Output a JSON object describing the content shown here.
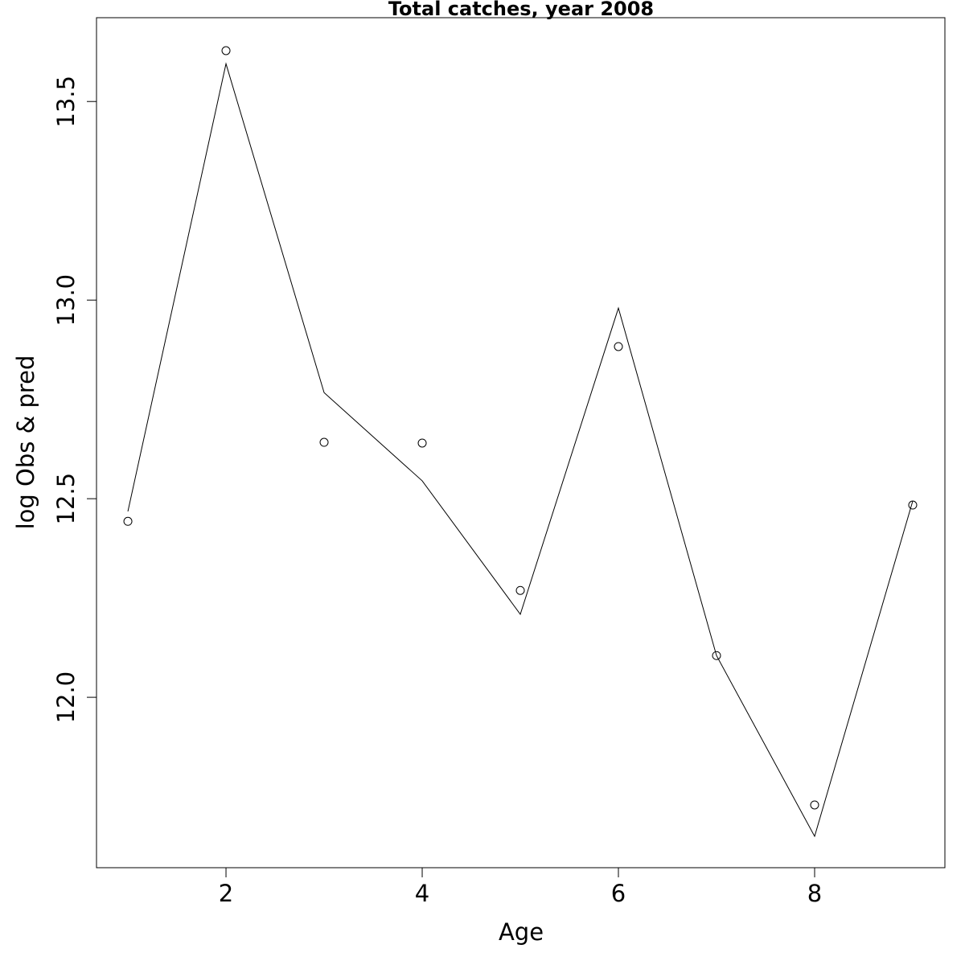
{
  "chart_data": {
    "type": "line",
    "title": "Total catches, year 2008",
    "x_label": "Age",
    "y_label": "log Obs & pred",
    "x": [
      1,
      2,
      3,
      4,
      5,
      6,
      7,
      8,
      9
    ],
    "series": [
      {
        "color": "#000000",
        "mark": "points",
        "values": [
          12.443,
          13.628,
          12.642,
          12.64,
          12.269,
          12.883,
          12.105,
          11.729,
          12.484
        ]
      },
      {
        "color": "#000000",
        "mark": "line",
        "values": [
          12.468,
          13.595,
          12.767,
          12.545,
          12.209,
          12.98,
          12.105,
          11.65,
          12.494
        ]
      }
    ],
    "xlim": [
      0.68,
      9.328
    ],
    "ylim": [
      11.571,
      13.711
    ],
    "xticks": [
      2,
      4,
      6,
      8
    ],
    "yticks": [
      {
        "value": 12,
        "label": "12.0"
      },
      12.5,
      {
        "value": 13,
        "label": "13.0"
      },
      13.5
    ],
    "grid": false
  }
}
